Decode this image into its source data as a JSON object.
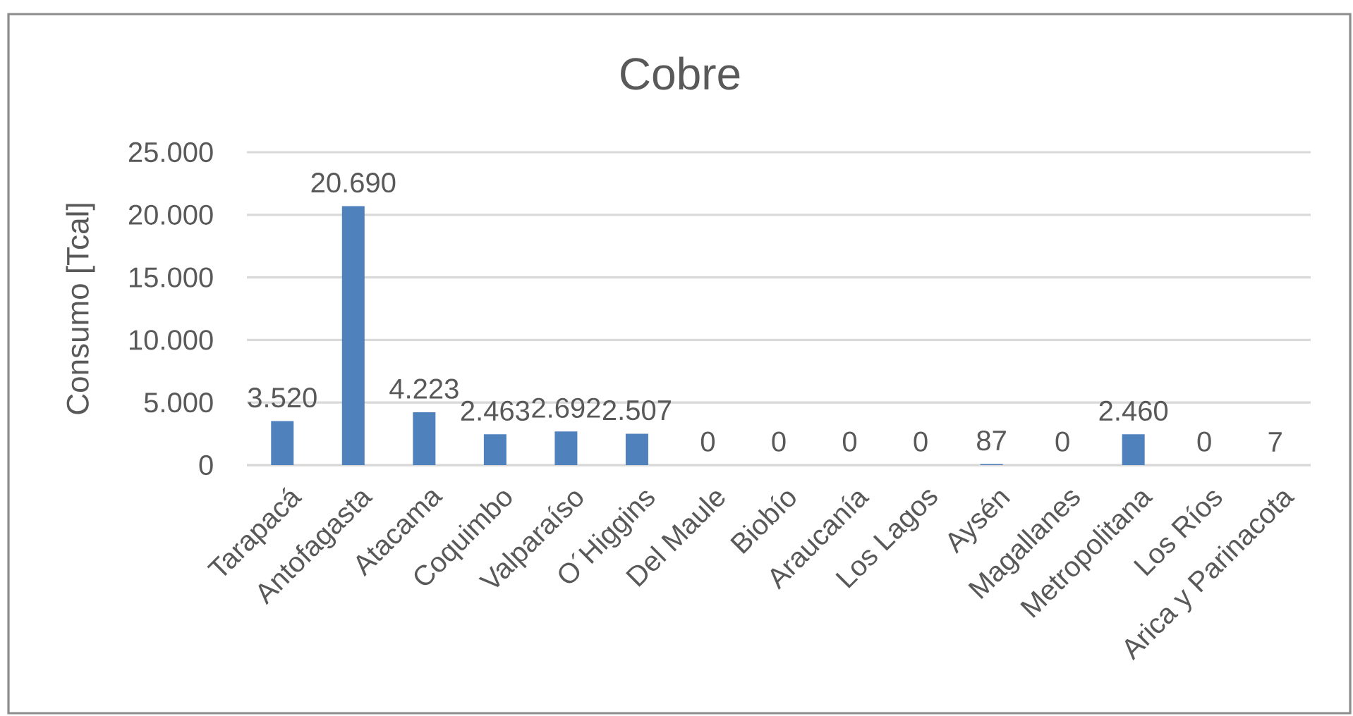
{
  "chart_data": {
    "type": "bar",
    "title": "Cobre",
    "ylabel": "Consumo [Tcal]",
    "categories": [
      "Tarapacá",
      "Antofagasta",
      "Atacama",
      "Coquimbo",
      "Valparaíso",
      "O´Higgins",
      "Del Maule",
      "Biobío",
      "Araucanía",
      "Los Lagos",
      "Aysén",
      "Magallanes",
      "Metropolitana",
      "Los Ríos",
      "Arica y Parinacota"
    ],
    "values": [
      3520,
      20690,
      4223,
      2463,
      2692,
      2507,
      0,
      0,
      0,
      0,
      87,
      0,
      2460,
      0,
      7
    ],
    "value_labels": [
      "3.520",
      "20.690",
      "4.223",
      "2.463",
      "2.692",
      "2.507",
      "0",
      "0",
      "0",
      "0",
      "87",
      "0",
      "2.460",
      "0",
      "7"
    ],
    "color": "#4f81bd",
    "ylim": [
      0,
      25000
    ],
    "yticks": [
      0,
      {
        "value": 5000,
        "label": "5.000"
      },
      {
        "value": 10000,
        "label": "10.000"
      },
      {
        "value": 15000,
        "label": "15.000"
      },
      {
        "value": 20000,
        "label": "20.000"
      },
      {
        "value": 25000,
        "label": "25.000"
      }
    ],
    "grid": "y"
  }
}
